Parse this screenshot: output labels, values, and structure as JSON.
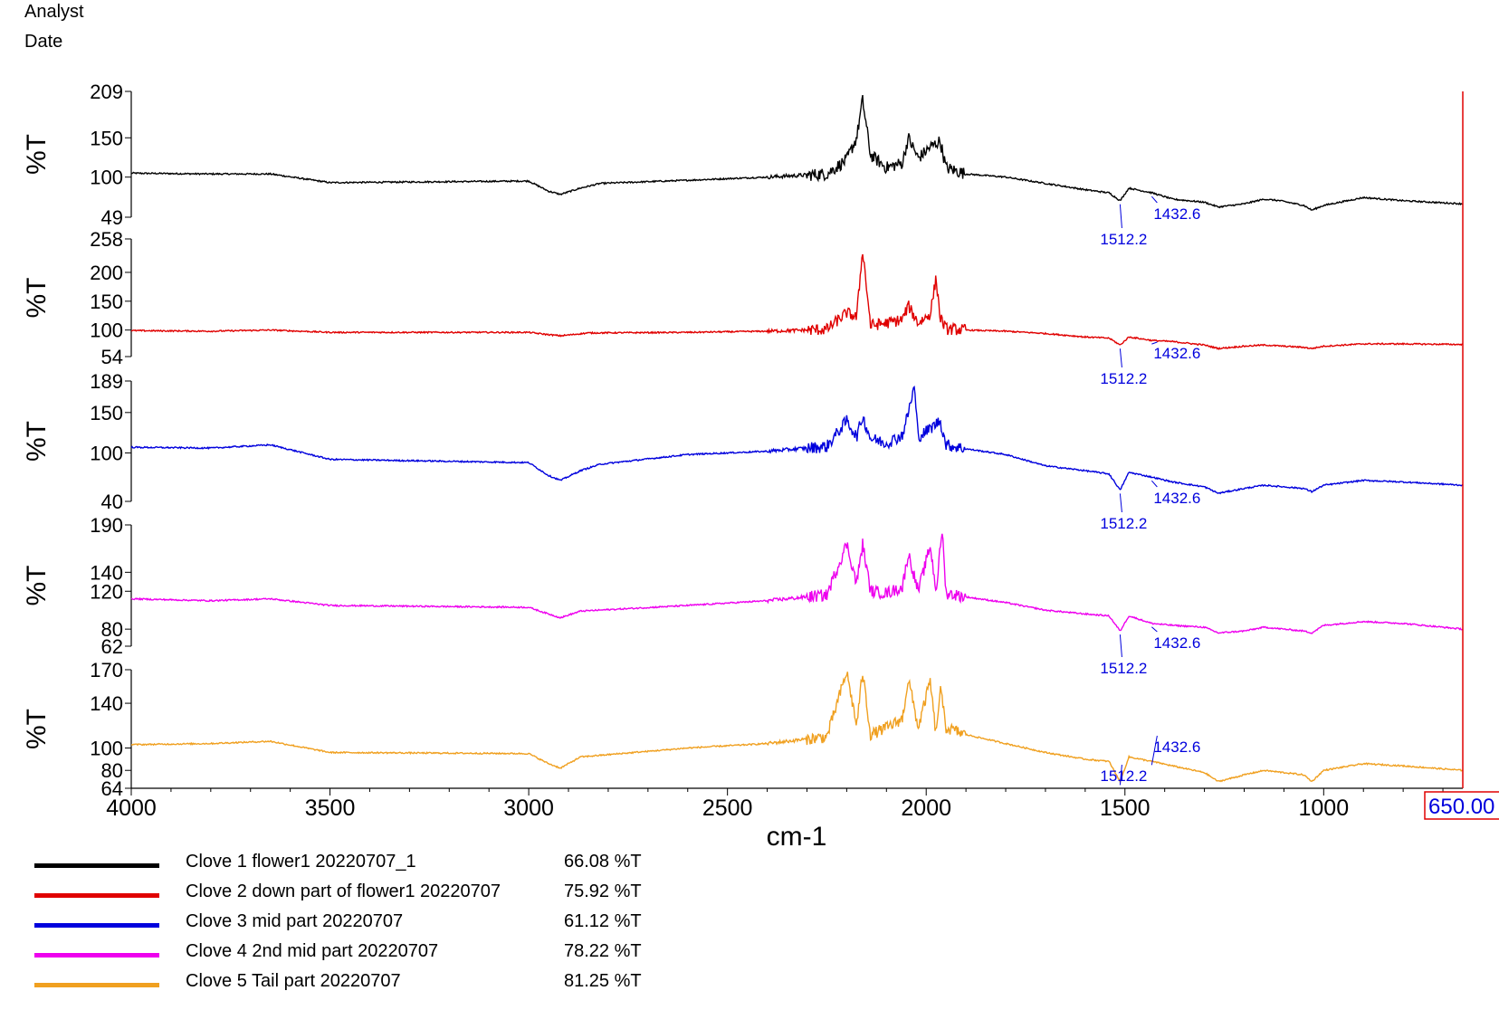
{
  "header": {
    "analyst_label": "Analyst",
    "date_label": "Date"
  },
  "chart_data": {
    "type": "line",
    "xlabel": "cm-1",
    "xlim": [
      4000,
      650
    ],
    "x_reversed": true,
    "x_ticks": [
      4000,
      3500,
      3000,
      2500,
      2000,
      1500,
      1000
    ],
    "x_end_label": "650.00",
    "grid": false,
    "legend_position": "bottom-left",
    "panels": [
      {
        "name": "Clove 1 flower1 20220707_1",
        "ylabel": "%T",
        "ylim": [
          49,
          209
        ],
        "yticks": [
          49,
          100,
          150,
          209
        ],
        "color": "#000000",
        "final_value": "66.08 %T",
        "peak_labels": [
          {
            "x": 1512.2,
            "label": "1512.2"
          },
          {
            "x": 1432.6,
            "label": "1432.6"
          }
        ],
        "x": [
          4000,
          3800,
          3650,
          3500,
          3000,
          2950,
          2920,
          2870,
          2820,
          2600,
          2400,
          2250,
          2200,
          2175,
          2160,
          2140,
          2100,
          2060,
          2045,
          2020,
          1990,
          1965,
          1950,
          1900,
          1800,
          1700,
          1600,
          1540,
          1512,
          1490,
          1432,
          1380,
          1300,
          1265,
          1200,
          1150,
          1110,
          1050,
          1030,
          1000,
          900,
          800,
          650
        ],
        "y": [
          105,
          104,
          104,
          93,
          95,
          82,
          78,
          86,
          92,
          96,
          100,
          104,
          122,
          150,
          198,
          128,
          112,
          118,
          150,
          124,
          138,
          146,
          112,
          104,
          100,
          92,
          84,
          80,
          70,
          86,
          80,
          72,
          68,
          62,
          66,
          72,
          70,
          64,
          58,
          64,
          74,
          70,
          66
        ]
      },
      {
        "name": "Clove 2 down part of flower1 20220707",
        "ylabel": "%T",
        "ylim": [
          54,
          258
        ],
        "yticks": [
          54,
          100,
          150,
          200,
          258
        ],
        "color": "#e00000",
        "final_value": "75.92 %T",
        "peak_labels": [
          {
            "x": 1512.2,
            "label": "1512.2"
          },
          {
            "x": 1432.6,
            "label": "1432.6"
          }
        ],
        "x": [
          4000,
          3800,
          3650,
          3500,
          3000,
          2950,
          2920,
          2850,
          2600,
          2400,
          2250,
          2200,
          2175,
          2160,
          2140,
          2100,
          2060,
          2045,
          2020,
          1990,
          1975,
          1965,
          1950,
          1900,
          1800,
          1700,
          1600,
          1540,
          1512,
          1490,
          1432,
          1380,
          1300,
          1265,
          1200,
          1150,
          1050,
          1030,
          1000,
          900,
          800,
          650
        ],
        "y": [
          99,
          98,
          100,
          96,
          96,
          92,
          90,
          95,
          96,
          98,
          101,
          130,
          122,
          240,
          108,
          112,
          118,
          142,
          112,
          128,
          190,
          122,
          102,
          100,
          98,
          94,
          88,
          86,
          74,
          88,
          82,
          80,
          74,
          68,
          72,
          74,
          70,
          68,
          72,
          76,
          76,
          75
        ]
      },
      {
        "name": "Clove 3 mid part  20220707",
        "ylabel": "%T",
        "ylim": [
          40,
          189
        ],
        "yticks": [
          40,
          100,
          150,
          189
        ],
        "color": "#0000dd",
        "final_value": "61.12 %T",
        "peak_labels": [
          {
            "x": 1512.2,
            "label": "1512.2"
          },
          {
            "x": 1432.6,
            "label": "1432.6"
          }
        ],
        "x": [
          4000,
          3800,
          3650,
          3500,
          3000,
          2950,
          2920,
          2870,
          2820,
          2600,
          2400,
          2250,
          2200,
          2175,
          2160,
          2140,
          2100,
          2060,
          2045,
          2030,
          2020,
          1990,
          1965,
          1950,
          1900,
          1800,
          1700,
          1600,
          1540,
          1512,
          1490,
          1432,
          1380,
          1300,
          1265,
          1200,
          1150,
          1050,
          1030,
          1000,
          900,
          800,
          650
        ],
        "y": [
          107,
          106,
          110,
          92,
          88,
          72,
          66,
          78,
          86,
          98,
          102,
          108,
          140,
          120,
          145,
          118,
          112,
          122,
          150,
          182,
          120,
          130,
          140,
          110,
          105,
          98,
          84,
          78,
          74,
          54,
          76,
          70,
          64,
          58,
          50,
          56,
          60,
          56,
          52,
          60,
          66,
          64,
          60
        ]
      },
      {
        "name": "Clove 4 2nd mid part  20220707",
        "ylabel": "%T",
        "ylim": [
          62,
          190
        ],
        "yticks": [
          62,
          80,
          120,
          140,
          190
        ],
        "color": "#ee00ee",
        "final_value": "78.22 %T",
        "peak_labels": [
          {
            "x": 1512.2,
            "label": "1512.2"
          },
          {
            "x": 1432.6,
            "label": "1432.6"
          }
        ],
        "x": [
          4000,
          3800,
          3650,
          3500,
          3000,
          2950,
          2920,
          2870,
          2600,
          2400,
          2250,
          2200,
          2175,
          2160,
          2140,
          2100,
          2060,
          2045,
          2020,
          1990,
          1975,
          1960,
          1950,
          1900,
          1800,
          1700,
          1600,
          1540,
          1512,
          1490,
          1432,
          1380,
          1300,
          1265,
          1200,
          1150,
          1050,
          1030,
          1000,
          900,
          800,
          650
        ],
        "y": [
          112,
          110,
          112,
          105,
          103,
          96,
          92,
          99,
          105,
          110,
          116,
          170,
          128,
          170,
          120,
          118,
          124,
          160,
          120,
          168,
          120,
          185,
          118,
          114,
          108,
          100,
          96,
          94,
          78,
          94,
          86,
          84,
          82,
          76,
          78,
          82,
          78,
          76,
          84,
          88,
          86,
          80
        ]
      },
      {
        "name": "Clove 5 Tail part 20220707",
        "ylabel": "%T",
        "ylim": [
          64,
          170
        ],
        "yticks": [
          64,
          80,
          100,
          140,
          170
        ],
        "color": "#f0a020",
        "final_value": "81.25 %T",
        "peak_labels": [
          {
            "x": 1512.2,
            "label": "1512.2"
          },
          {
            "x": 1432.6,
            "label": "1432.6"
          }
        ],
        "x": [
          4000,
          3800,
          3650,
          3500,
          3000,
          2950,
          2920,
          2870,
          2600,
          2400,
          2250,
          2200,
          2175,
          2160,
          2140,
          2100,
          2060,
          2045,
          2020,
          1990,
          1975,
          1965,
          1950,
          1900,
          1800,
          1700,
          1600,
          1540,
          1512,
          1490,
          1432,
          1380,
          1300,
          1265,
          1200,
          1150,
          1050,
          1030,
          1000,
          900,
          800,
          650
        ],
        "y": [
          103,
          104,
          106,
          96,
          95,
          86,
          82,
          92,
          100,
          104,
          110,
          168,
          120,
          168,
          112,
          118,
          126,
          162,
          118,
          160,
          110,
          154,
          118,
          112,
          104,
          96,
          90,
          88,
          70,
          92,
          88,
          84,
          78,
          70,
          76,
          80,
          76,
          70,
          80,
          86,
          84,
          80
        ]
      }
    ]
  }
}
